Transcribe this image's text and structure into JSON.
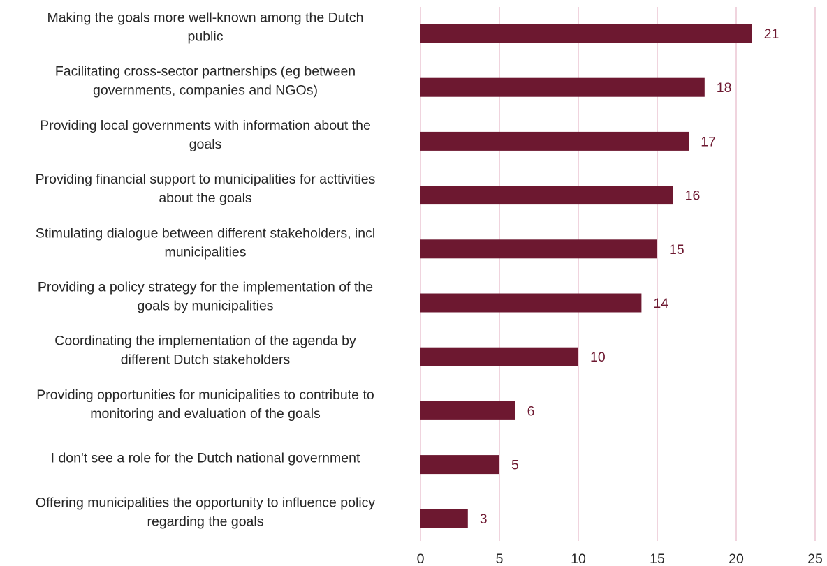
{
  "chart_data": {
    "type": "bar",
    "orientation": "horizontal",
    "categories": [
      [
        "Making the goals more well-known among the Dutch",
        "public"
      ],
      [
        "Facilitating cross-sector partnerships (eg between",
        "governments, companies and NGOs)"
      ],
      [
        "Providing local governments with information about the",
        "goals"
      ],
      [
        "Providing financial support to municipalities for acttivities",
        "about the goals"
      ],
      [
        "Stimulating dialogue between different stakeholders, incl",
        "municipalities"
      ],
      [
        "Providing a policy strategy for the implementation of the",
        "goals by municipalities"
      ],
      [
        "Coordinating the implementation of the agenda by",
        "different Dutch stakeholders"
      ],
      [
        "Providing opportunities for municipalities to contribute to",
        "monitoring and evaluation of the goals"
      ],
      [
        "I don't see a role for the Dutch national government"
      ],
      [
        "Offering municipalities the opportunity to influence policy",
        "regarding the goals"
      ]
    ],
    "values": [
      21,
      18,
      17,
      16,
      15,
      14,
      10,
      6,
      5,
      3
    ],
    "xlim": [
      0,
      25
    ],
    "xticks": [
      0,
      5,
      10,
      15,
      20,
      25
    ],
    "grid": true,
    "data_labels": true,
    "colors": {
      "bar": "#6d1830",
      "grid": "#ecc6d3",
      "value_label": "#6d1830",
      "text": "#262626"
    }
  }
}
